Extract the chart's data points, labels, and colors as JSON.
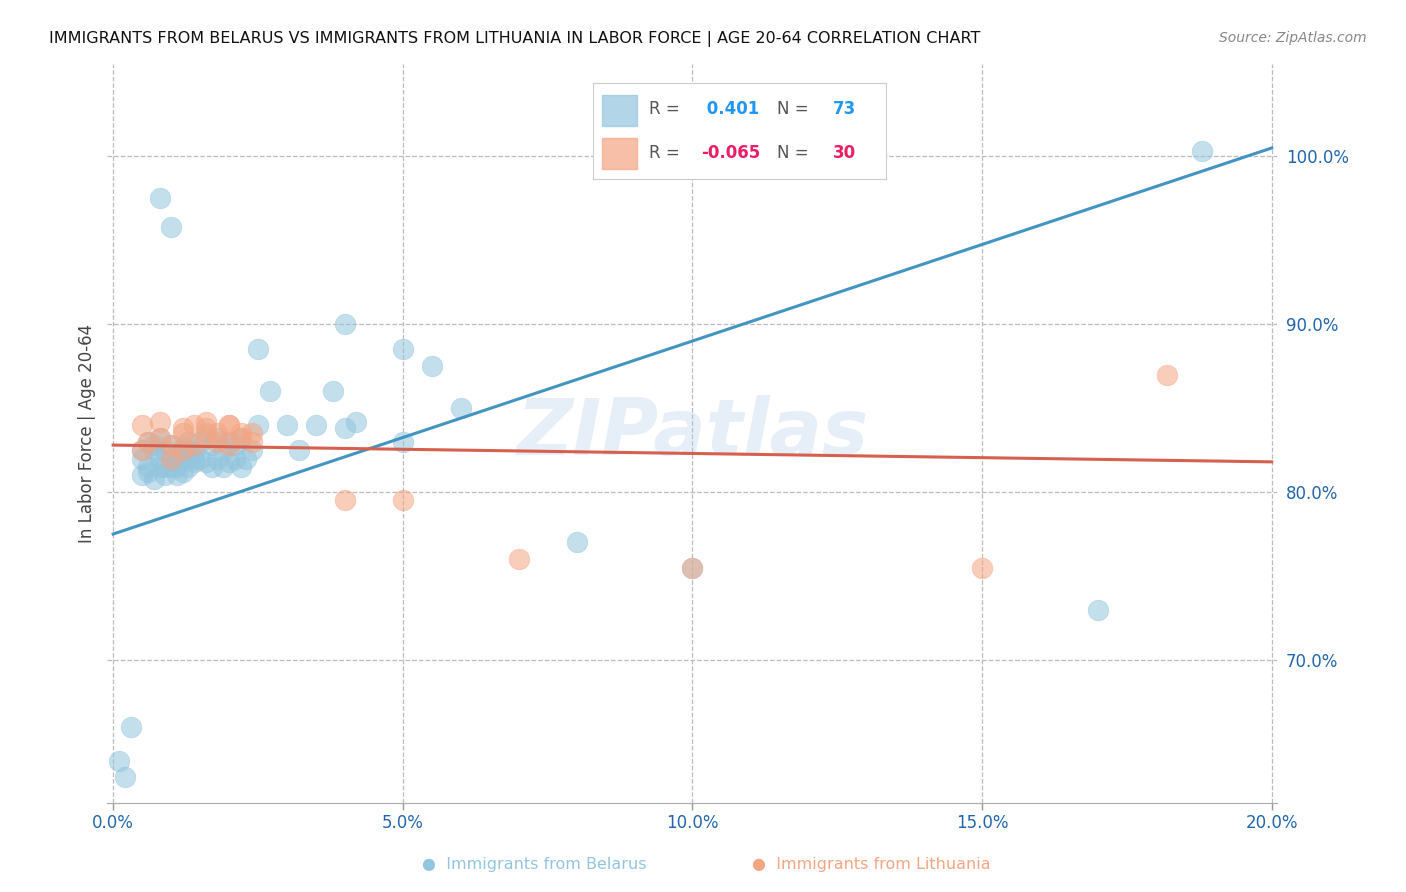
{
  "title": "IMMIGRANTS FROM BELARUS VS IMMIGRANTS FROM LITHUANIA IN LABOR FORCE | AGE 20-64 CORRELATION CHART",
  "source": "Source: ZipAtlas.com",
  "ylabel": "In Labor Force | Age 20-64",
  "color_belarus": "#92c5de",
  "color_lithuania": "#f4a582",
  "line_color_belarus": "#4393c3",
  "line_color_lithuania": "#d6604d",
  "watermark": "ZIPatlas",
  "xlim": [
    -0.001,
    0.201
  ],
  "ylim": [
    0.615,
    1.055
  ],
  "belarus_line": [
    0.0,
    0.775,
    0.2,
    1.005
  ],
  "lithuania_line": [
    0.0,
    0.828,
    0.2,
    0.818
  ],
  "belarus_scatter_x": [
    0.005,
    0.006,
    0.007,
    0.008,
    0.009,
    0.01,
    0.011,
    0.012,
    0.013,
    0.014,
    0.005,
    0.006,
    0.007,
    0.008,
    0.009,
    0.01,
    0.011,
    0.012,
    0.013,
    0.014,
    0.005,
    0.006,
    0.007,
    0.008,
    0.009,
    0.01,
    0.011,
    0.012,
    0.013,
    0.014,
    0.015,
    0.016,
    0.017,
    0.018,
    0.019,
    0.02,
    0.021,
    0.022,
    0.023,
    0.024,
    0.015,
    0.016,
    0.017,
    0.018,
    0.019,
    0.02,
    0.021,
    0.022,
    0.025,
    0.027,
    0.03,
    0.032,
    0.035,
    0.038,
    0.04,
    0.042,
    0.05,
    0.055,
    0.06,
    0.001,
    0.002,
    0.003,
    0.008,
    0.01,
    0.025,
    0.04,
    0.05,
    0.08,
    0.1,
    0.17,
    0.188
  ],
  "belarus_scatter_y": [
    0.82,
    0.815,
    0.825,
    0.82,
    0.815,
    0.82,
    0.815,
    0.82,
    0.825,
    0.82,
    0.81,
    0.812,
    0.808,
    0.815,
    0.81,
    0.815,
    0.81,
    0.812,
    0.815,
    0.818,
    0.825,
    0.83,
    0.828,
    0.832,
    0.825,
    0.828,
    0.822,
    0.826,
    0.83,
    0.824,
    0.82,
    0.818,
    0.815,
    0.82,
    0.815,
    0.818,
    0.82,
    0.815,
    0.82,
    0.825,
    0.83,
    0.835,
    0.828,
    0.832,
    0.825,
    0.83,
    0.828,
    0.832,
    0.84,
    0.86,
    0.84,
    0.825,
    0.84,
    0.86,
    0.838,
    0.842,
    0.83,
    0.875,
    0.85,
    0.64,
    0.63,
    0.66,
    0.975,
    0.958,
    0.885,
    0.9,
    0.885,
    0.77,
    0.755,
    0.73,
    1.003
  ],
  "lithuania_scatter_x": [
    0.005,
    0.006,
    0.008,
    0.01,
    0.012,
    0.014,
    0.016,
    0.018,
    0.02,
    0.022,
    0.005,
    0.008,
    0.012,
    0.016,
    0.02,
    0.024,
    0.01,
    0.012,
    0.014,
    0.016,
    0.018,
    0.02,
    0.022,
    0.024,
    0.04,
    0.05,
    0.07,
    0.1,
    0.15,
    0.182
  ],
  "lithuania_scatter_y": [
    0.825,
    0.83,
    0.832,
    0.828,
    0.835,
    0.84,
    0.838,
    0.835,
    0.84,
    0.835,
    0.84,
    0.842,
    0.838,
    0.842,
    0.84,
    0.835,
    0.82,
    0.825,
    0.828,
    0.832,
    0.83,
    0.828,
    0.832,
    0.83,
    0.795,
    0.795,
    0.76,
    0.755,
    0.755,
    0.87
  ]
}
